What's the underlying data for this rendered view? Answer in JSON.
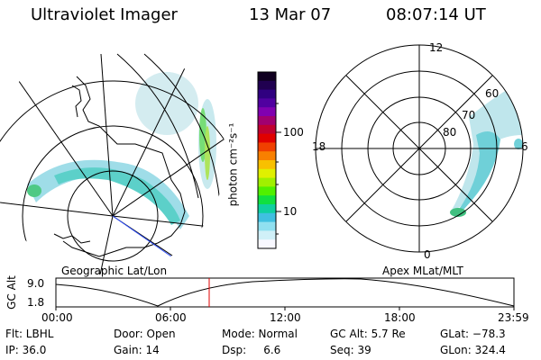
{
  "header": {
    "instrument": "Ultraviolet Imager",
    "date": "13 Mar 07",
    "time": "08:07:14 UT"
  },
  "left_panel": {
    "label": "Geographic Lat/Lon"
  },
  "right_panel": {
    "label": "Apex MLat/MLT",
    "mlt_labels": {
      "top": "12",
      "left": "18",
      "right": "6",
      "bottom": "0"
    },
    "lat_labels": [
      "60",
      "70",
      "80"
    ]
  },
  "colorbar": {
    "unit_label": "photon cm⁻²s⁻¹",
    "ticks": [
      "100",
      "10"
    ],
    "colors": [
      "#100020",
      "#200050",
      "#300080",
      "#5000a0",
      "#8000b0",
      "#a00070",
      "#c00030",
      "#e00000",
      "#f04000",
      "#f88000",
      "#f8c000",
      "#e0f000",
      "#a0f000",
      "#50f000",
      "#10e040",
      "#10d0a0",
      "#40c0e0",
      "#90e0f0",
      "#d0f0f8",
      "#f8f8ff"
    ]
  },
  "altitude_plot": {
    "ylabel": "GC Alt",
    "yticks": [
      "9.0",
      "1.8"
    ],
    "xticks": [
      "00:00",
      "06:00",
      "12:00",
      "18:00",
      "23:59"
    ],
    "current_time_hours": 8.12
  },
  "info": {
    "filter": "Flt: LBHL",
    "door": "Door: Open",
    "mode": "Mode: Normal",
    "gc_alt": "GC Alt: 5.7 Re",
    "glat": "GLat: −78.3",
    "ip": "IP: 36.0",
    "gain": "Gain: 14",
    "dsp": "Dsp:     6.6",
    "seq": "Seq: 39",
    "glon": "GLon: 324.4"
  }
}
